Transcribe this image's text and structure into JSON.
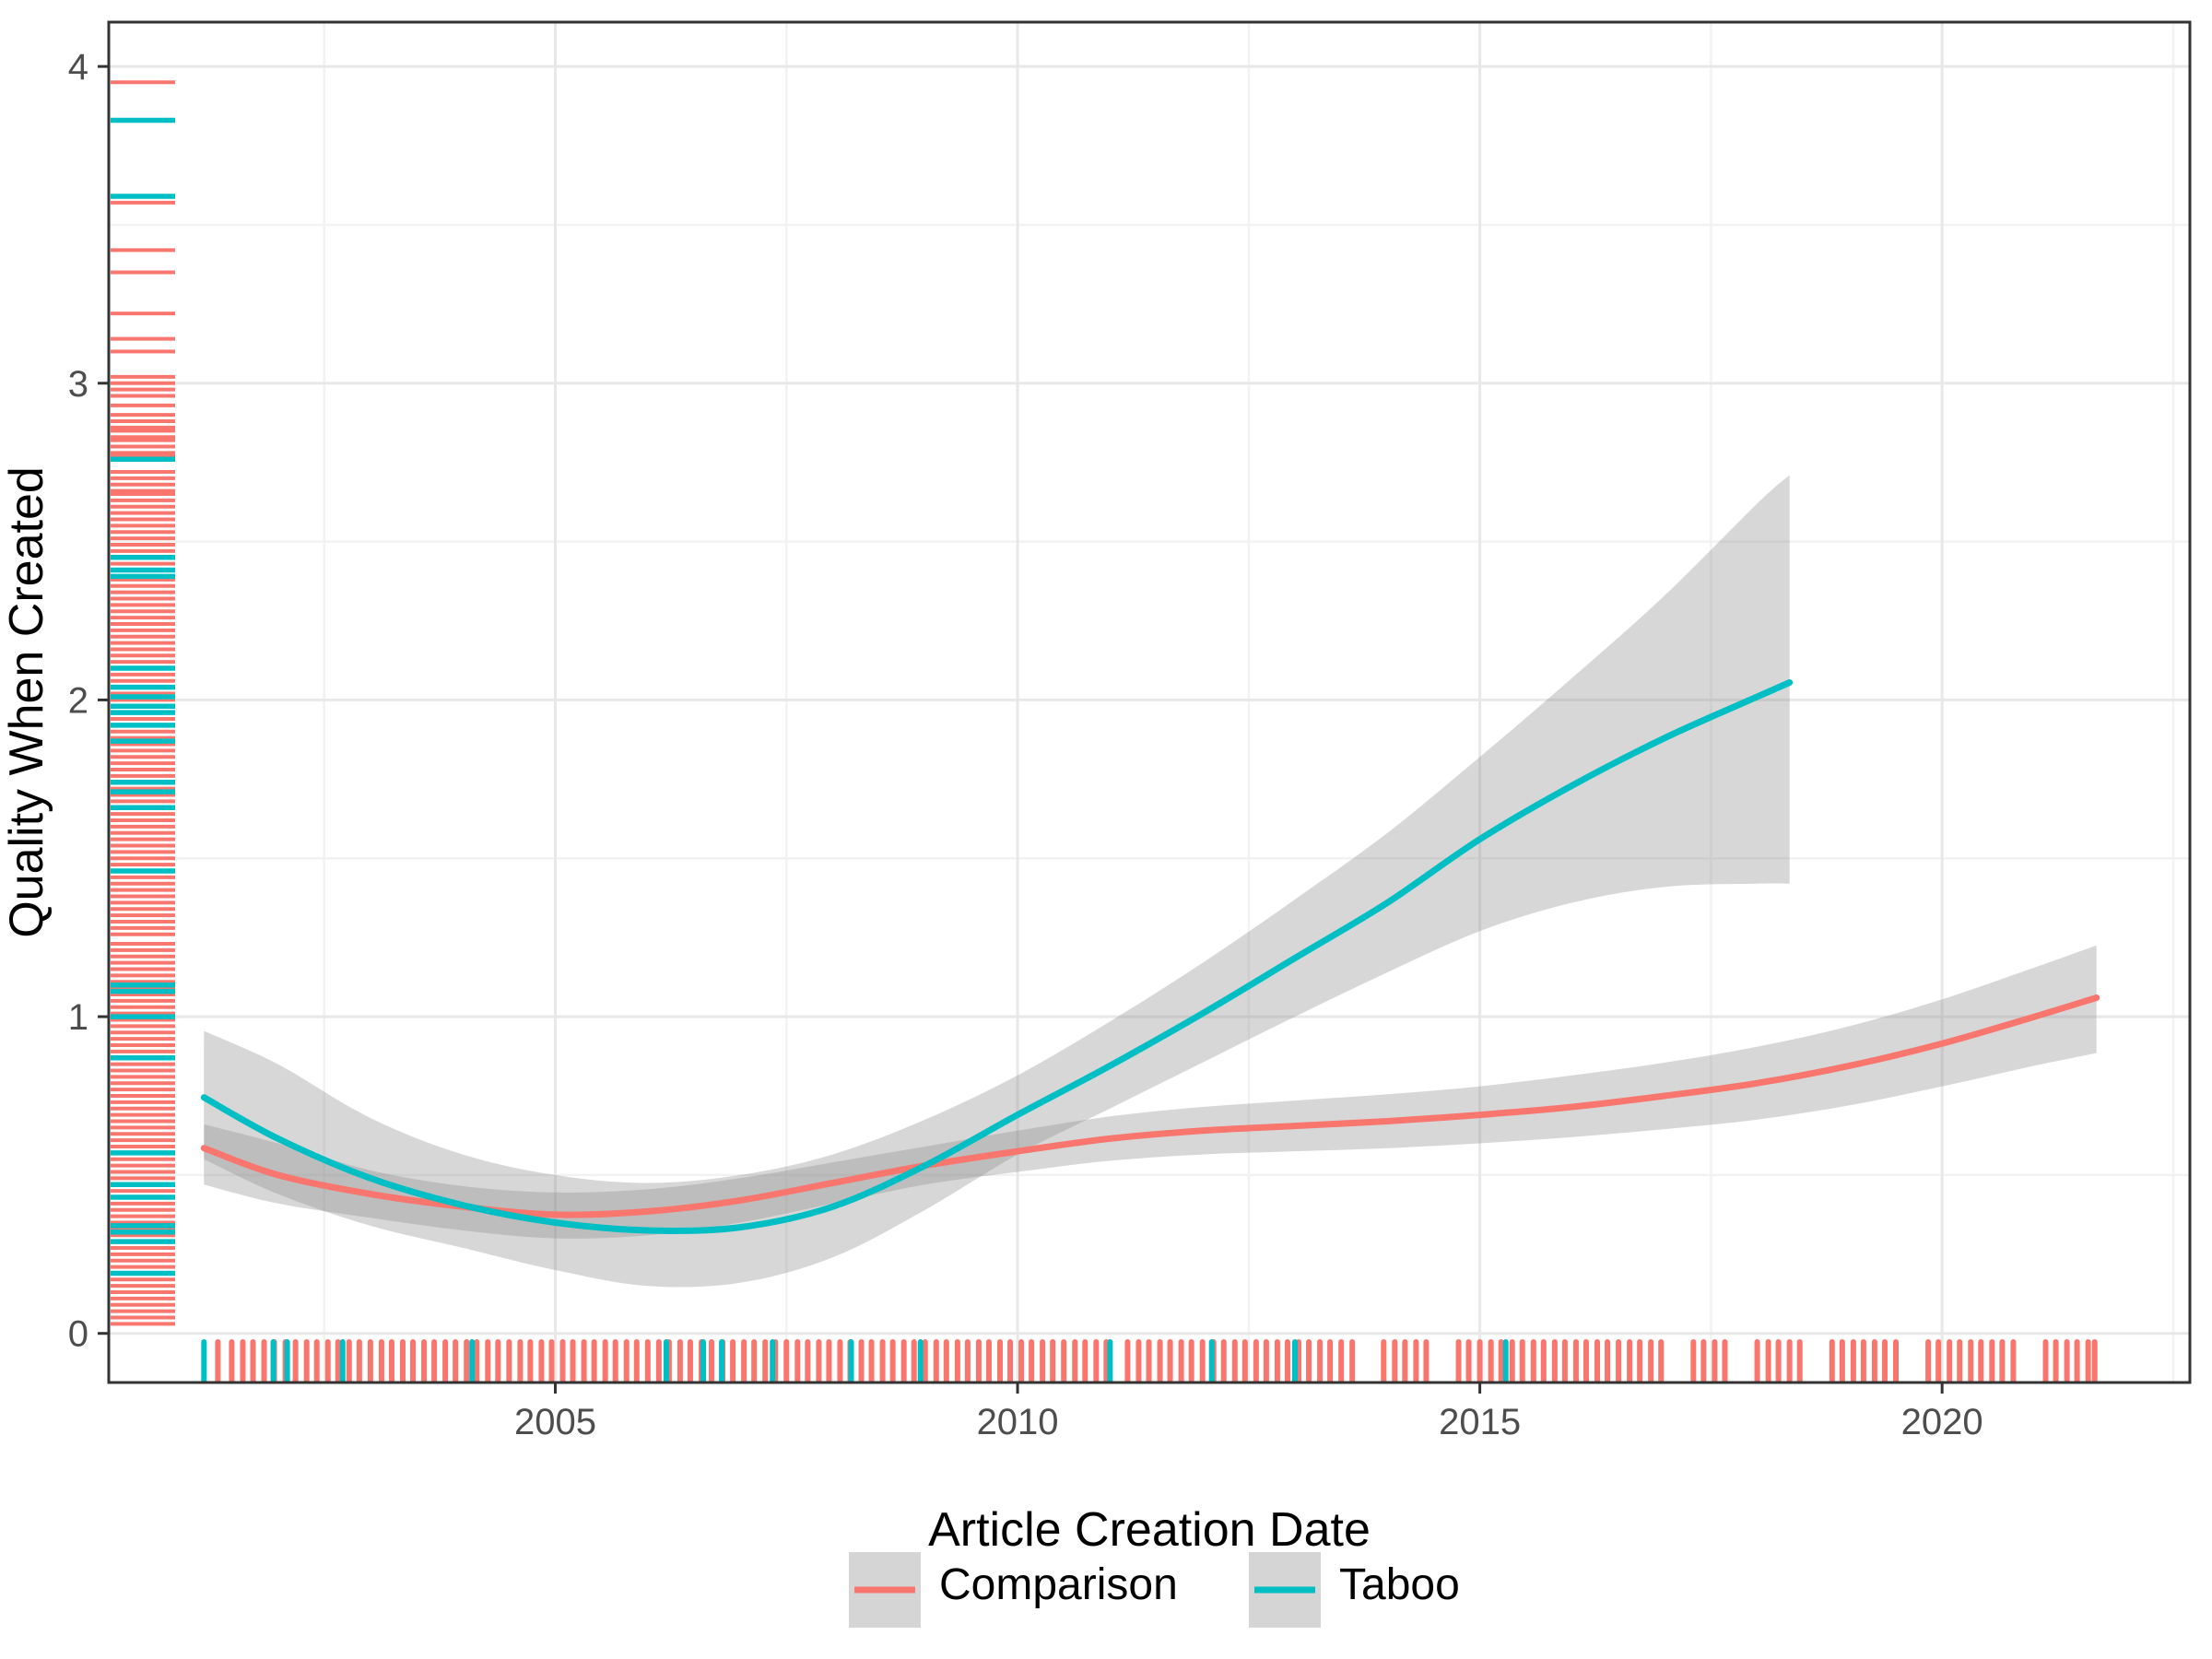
{
  "chart_data": {
    "type": "line",
    "title": "",
    "xlabel": "Article Creation Date",
    "ylabel": "Quality When Created",
    "x_domain": [
      2000.17,
      2022.68
    ],
    "y_domain": [
      -0.155,
      4.14
    ],
    "x_ticks": [
      2005,
      2010,
      2015,
      2020
    ],
    "x_minor_ticks": [
      2002.5,
      2007.5,
      2012.5,
      2017.5,
      2022.5
    ],
    "y_ticks": [
      0,
      1,
      2,
      3,
      4
    ],
    "y_minor_ticks": [
      0.5,
      1.5,
      2.5,
      3.5
    ],
    "grid": true,
    "legend_position": "bottom",
    "colors": {
      "comparison": "#F8766D",
      "taboo": "#00BFC4",
      "band": "rgba(140,140,140,0.35)",
      "legend_key_fill": "#D5D5D5",
      "panel_border": "#333333",
      "tick_mark": "#333333",
      "tick_label": "#4D4D4D",
      "grid_major": "#E8E8E8",
      "grid_minor": "#F2F2F2",
      "background": "#FFFFFF"
    },
    "legend": {
      "items": [
        {
          "name": "comparison",
          "label": "Comparison",
          "color": "#F8766D"
        },
        {
          "name": "taboo",
          "label": "Taboo",
          "color": "#00BFC4"
        }
      ]
    },
    "series": [
      {
        "name": "Comparison",
        "color": "#F8766D",
        "x": [
          2001.2,
          2002,
          2003,
          2004,
          2005,
          2006,
          2007,
          2008,
          2009,
          2010,
          2011,
          2012,
          2013,
          2014,
          2015,
          2016,
          2017,
          2018,
          2019,
          2020,
          2021,
          2021.67
        ],
        "y": [
          0.585,
          0.5,
          0.44,
          0.4,
          0.375,
          0.385,
          0.42,
          0.475,
          0.53,
          0.575,
          0.615,
          0.64,
          0.655,
          0.67,
          0.69,
          0.715,
          0.75,
          0.79,
          0.845,
          0.915,
          1.0,
          1.06
        ],
        "ci_lower": [
          0.47,
          0.41,
          0.365,
          0.325,
          0.3,
          0.31,
          0.35,
          0.41,
          0.47,
          0.51,
          0.545,
          0.565,
          0.575,
          0.585,
          0.6,
          0.62,
          0.645,
          0.675,
          0.72,
          0.78,
          0.845,
          0.885
        ],
        "ci_upper": [
          0.66,
          0.6,
          0.515,
          0.465,
          0.445,
          0.455,
          0.49,
          0.54,
          0.59,
          0.64,
          0.685,
          0.715,
          0.735,
          0.755,
          0.78,
          0.815,
          0.855,
          0.905,
          0.97,
          1.055,
          1.155,
          1.225
        ]
      },
      {
        "name": "Taboo",
        "color": "#00BFC4",
        "x": [
          2001.2,
          2002,
          2003,
          2004,
          2005,
          2006,
          2007,
          2008,
          2009,
          2010,
          2011,
          2012,
          2013,
          2014,
          2015,
          2016,
          2017,
          2018,
          2018.35
        ],
        "y": [
          0.745,
          0.615,
          0.49,
          0.405,
          0.35,
          0.325,
          0.335,
          0.4,
          0.53,
          0.69,
          0.845,
          1.01,
          1.185,
          1.36,
          1.56,
          1.73,
          1.88,
          2.01,
          2.055
        ],
        "ci_lower": [
          0.55,
          0.44,
          0.34,
          0.27,
          0.2,
          0.15,
          0.16,
          0.24,
          0.39,
          0.565,
          0.71,
          0.855,
          1.0,
          1.14,
          1.27,
          1.36,
          1.41,
          1.42,
          1.42
        ],
        "ci_upper": [
          0.955,
          0.85,
          0.68,
          0.565,
          0.5,
          0.475,
          0.5,
          0.565,
          0.675,
          0.815,
          0.985,
          1.17,
          1.37,
          1.58,
          1.82,
          2.07,
          2.33,
          2.62,
          2.71
        ]
      }
    ],
    "rug_y": {
      "comparison": [
        3.95,
        3.57,
        3.42,
        3.35,
        3.22,
        3.14,
        3.1,
        3.02,
        3.0,
        2.98,
        2.96,
        2.93,
        2.9,
        2.88,
        2.86,
        2.85,
        2.83,
        2.82,
        2.8,
        2.78,
        2.77,
        2.76,
        2.72,
        2.7,
        2.68,
        2.66,
        2.65,
        2.63,
        2.61,
        2.59,
        2.57,
        2.55,
        2.53,
        2.51,
        2.49,
        2.47,
        2.45,
        2.43,
        2.38,
        2.36,
        2.34,
        2.32,
        2.3,
        2.28,
        2.26,
        2.24,
        2.22,
        2.2,
        2.18,
        2.16,
        2.14,
        2.12,
        2.1,
        2.08,
        2.06,
        2.04,
        2.02,
        2.0,
        1.98,
        1.96,
        1.94,
        1.92,
        1.9,
        1.88,
        1.86,
        1.84,
        1.82,
        1.8,
        1.78,
        1.76,
        1.74,
        1.72,
        1.7,
        1.68,
        1.66,
        1.64,
        1.62,
        1.6,
        1.58,
        1.56,
        1.54,
        1.52,
        1.5,
        1.48,
        1.46,
        1.44,
        1.42,
        1.4,
        1.38,
        1.36,
        1.34,
        1.32,
        1.3,
        1.28,
        1.26,
        1.23,
        1.21,
        1.19,
        1.17,
        1.15,
        1.13,
        1.11,
        1.09,
        1.07,
        1.05,
        1.03,
        1.01,
        0.99,
        0.97,
        0.95,
        0.93,
        0.91,
        0.89,
        0.87,
        0.85,
        0.83,
        0.81,
        0.79,
        0.77,
        0.75,
        0.73,
        0.71,
        0.69,
        0.67,
        0.65,
        0.63,
        0.61,
        0.59,
        0.57,
        0.55,
        0.53,
        0.51,
        0.49,
        0.47,
        0.45,
        0.43,
        0.41,
        0.39,
        0.37,
        0.35,
        0.33,
        0.31,
        0.29,
        0.27,
        0.25,
        0.23,
        0.21,
        0.19,
        0.17,
        0.15,
        0.13,
        0.11,
        0.09,
        0.07,
        0.05,
        0.03
      ],
      "taboo": [
        3.83,
        3.59,
        2.76,
        2.45,
        2.41,
        2.39,
        2.1,
        2.04,
        2.01,
        1.98,
        1.96,
        1.92,
        1.87,
        1.74,
        1.71,
        1.66,
        1.46,
        1.1,
        1.08,
        1.0,
        0.87,
        0.57,
        0.47,
        0.43,
        0.34,
        0.32,
        0.29,
        0.19
      ]
    },
    "rug_x": {
      "comparison": [
        2001.35,
        2001.5,
        2001.62,
        2001.73,
        2001.85,
        2001.96,
        2002.08,
        2002.19,
        2002.31,
        2002.42,
        2002.54,
        2002.65,
        2002.77,
        2002.88,
        2003.0,
        2003.12,
        2003.23,
        2003.35,
        2003.46,
        2003.58,
        2003.69,
        2003.81,
        2003.92,
        2004.04,
        2004.15,
        2004.27,
        2004.38,
        2004.5,
        2004.62,
        2004.73,
        2004.85,
        2004.96,
        2005.08,
        2005.19,
        2005.31,
        2005.42,
        2005.54,
        2005.65,
        2005.77,
        2005.88,
        2006.0,
        2006.12,
        2006.23,
        2006.35,
        2006.46,
        2006.58,
        2006.69,
        2006.81,
        2006.92,
        2007.04,
        2007.15,
        2007.27,
        2007.38,
        2007.5,
        2007.62,
        2007.73,
        2007.85,
        2007.96,
        2008.08,
        2008.19,
        2008.31,
        2008.42,
        2008.54,
        2008.65,
        2008.77,
        2008.88,
        2009.0,
        2009.12,
        2009.23,
        2009.35,
        2009.46,
        2009.58,
        2009.69,
        2009.81,
        2009.92,
        2010.04,
        2010.15,
        2010.27,
        2010.38,
        2010.5,
        2010.62,
        2010.73,
        2010.85,
        2010.96,
        2011.19,
        2011.31,
        2011.42,
        2011.54,
        2011.65,
        2011.77,
        2011.88,
        2012.0,
        2012.12,
        2012.23,
        2012.35,
        2012.46,
        2012.58,
        2012.69,
        2012.81,
        2012.92,
        2013.04,
        2013.15,
        2013.27,
        2013.38,
        2013.5,
        2013.62,
        2013.96,
        2014.08,
        2014.19,
        2014.31,
        2014.42,
        2014.77,
        2014.88,
        2015.0,
        2015.12,
        2015.23,
        2015.35,
        2015.46,
        2015.58,
        2015.69,
        2015.81,
        2015.92,
        2016.04,
        2016.15,
        2016.27,
        2016.38,
        2016.5,
        2016.62,
        2016.73,
        2016.85,
        2016.96,
        2017.31,
        2017.42,
        2017.54,
        2017.65,
        2018.0,
        2018.12,
        2018.23,
        2018.35,
        2018.46,
        2018.81,
        2018.92,
        2019.04,
        2019.15,
        2019.27,
        2019.38,
        2019.5,
        2019.85,
        2019.96,
        2020.08,
        2020.19,
        2020.31,
        2020.42,
        2020.54,
        2020.65,
        2020.77,
        2021.12,
        2021.23,
        2021.35,
        2021.46,
        2021.58,
        2021.65
      ],
      "taboo": [
        2001.2,
        2001.95,
        2002.1,
        2002.7,
        2004.1,
        2006.2,
        2006.6,
        2006.8,
        2007.35,
        2008.2,
        2008.95,
        2011.0,
        2012.1,
        2013.0,
        2015.28
      ]
    }
  }
}
